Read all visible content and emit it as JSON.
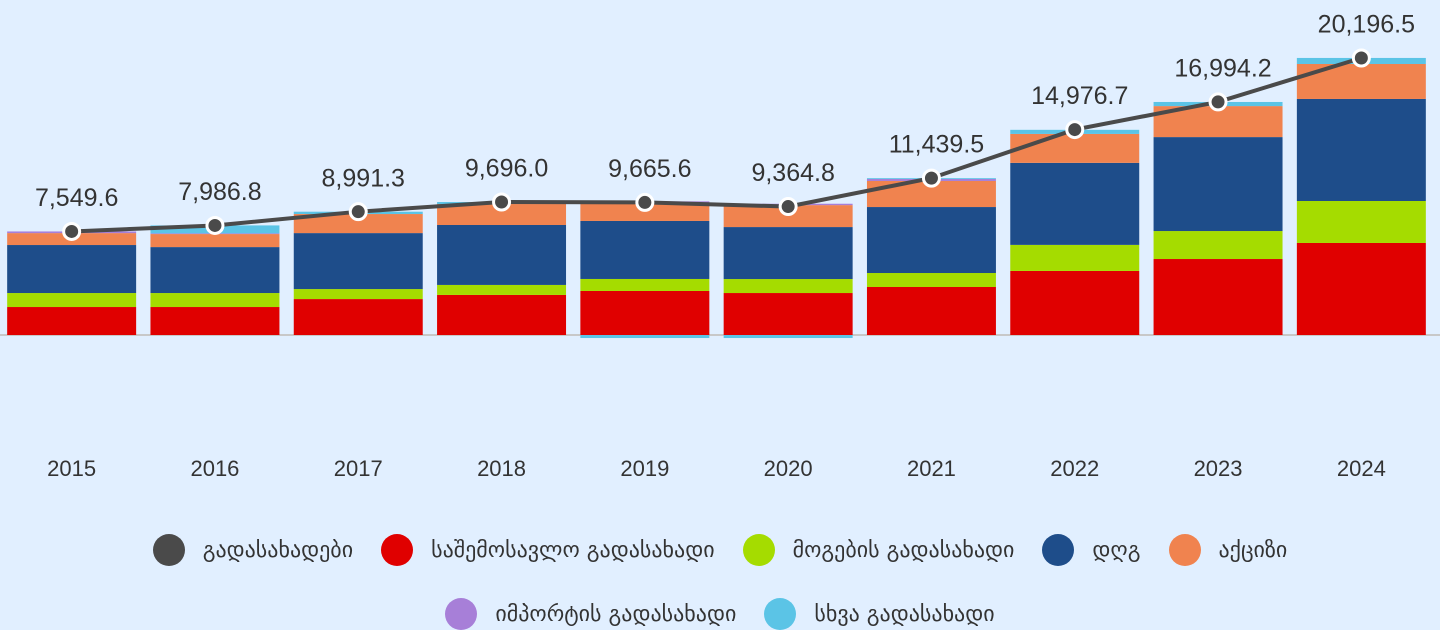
{
  "chart_data": {
    "type": "stacked-bar-line",
    "categories": [
      "2015",
      "2016",
      "2017",
      "2018",
      "2019",
      "2020",
      "2021",
      "2022",
      "2023",
      "2024"
    ],
    "line": {
      "name": "გადასახადები",
      "color": "#4a4a4a",
      "values": [
        7549.6,
        7986.8,
        8991.3,
        9696.0,
        9665.6,
        9364.8,
        11439.5,
        14976.7,
        16994.2,
        20196.5
      ],
      "value_labels": [
        "7,549.6",
        "7,986.8",
        "8,991.3",
        "9,696.0",
        "9,665.6",
        "9,364.8",
        "11,439.5",
        "14,976.7",
        "16,994.2",
        "20,196.5"
      ]
    },
    "series": [
      {
        "name": "საშემოსავლო გადასახადი",
        "color": "#e00000",
        "values": [
          2040,
          2040,
          2620,
          2920,
          3210,
          3060,
          3500,
          4670,
          5540,
          6710
        ]
      },
      {
        "name": "მოგების გადასახადი",
        "color": "#a5dc00",
        "values": [
          1020,
          1020,
          730,
          730,
          875,
          1020,
          1020,
          1900,
          2040,
          3060
        ]
      },
      {
        "name": "დღგ",
        "color": "#1e4d8a",
        "values": [
          3500,
          3350,
          4080,
          4370,
          4230,
          3790,
          4810,
          5980,
          6850,
          7440
        ]
      },
      {
        "name": "აქციზი",
        "color": "#f0834f",
        "values": [
          870,
          950,
          1390,
          1530,
          1310,
          1600,
          1900,
          2110,
          2260,
          2550
        ]
      },
      {
        "name": "იმპორტის გადასახადი",
        "color": "#a77fd8",
        "values": [
          120,
          50,
          0,
          0,
          120,
          100,
          150,
          0,
          0,
          0
        ]
      },
      {
        "name": "სხვა გადასახადი",
        "color": "#5bc4e6",
        "values": [
          0,
          580,
          170,
          146,
          -220,
          -220,
          60,
          300,
          300,
          440
        ]
      }
    ]
  }
}
